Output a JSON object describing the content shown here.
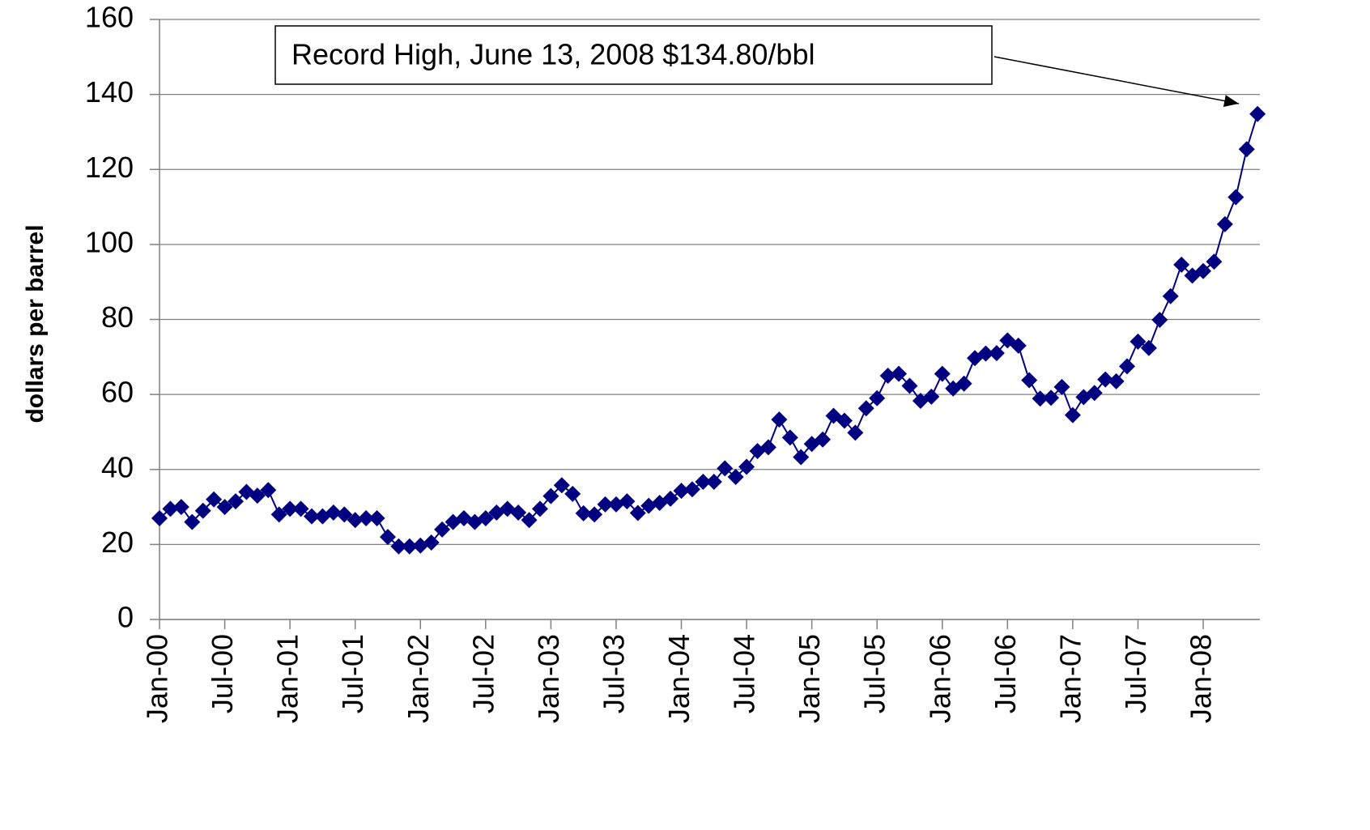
{
  "chart_data": {
    "type": "line",
    "y_axis_label": "dollars per barrel",
    "annotation": "Record High, June 13, 2008 $134.80/bbl",
    "categories": [
      "Jan-00",
      null,
      null,
      null,
      null,
      null,
      "Jul-00",
      null,
      null,
      null,
      null,
      null,
      "Jan-01",
      null,
      null,
      null,
      null,
      null,
      "Jul-01",
      null,
      null,
      null,
      null,
      null,
      "Jan-02",
      null,
      null,
      null,
      null,
      null,
      "Jul-02",
      null,
      null,
      null,
      null,
      null,
      "Jan-03",
      null,
      null,
      null,
      null,
      null,
      "Jul-03",
      null,
      null,
      null,
      null,
      null,
      "Jan-04",
      null,
      null,
      null,
      null,
      null,
      "Jul-04",
      null,
      null,
      null,
      null,
      null,
      "Jan-05",
      null,
      null,
      null,
      null,
      null,
      "Jul-05",
      null,
      null,
      null,
      null,
      null,
      "Jan-06",
      null,
      null,
      null,
      null,
      null,
      "Jul-06",
      null,
      null,
      null,
      null,
      null,
      "Jan-07",
      null,
      null,
      null,
      null,
      null,
      "Jul-07",
      null,
      null,
      null,
      null,
      null,
      "Jan-08",
      null,
      null,
      null,
      null,
      null
    ],
    "values": [
      27,
      29.5,
      30,
      26,
      29,
      32,
      30,
      31.5,
      34,
      33,
      34.5,
      28,
      29.5,
      29.5,
      27.5,
      27.5,
      28.5,
      28,
      26.5,
      27,
      27,
      22,
      19.5,
      19.5,
      19.7,
      20.5,
      24,
      26,
      27,
      26,
      27,
      28.5,
      29.5,
      28.5,
      26.5,
      29.5,
      32.9,
      35.8,
      33.5,
      28.3,
      28,
      30.7,
      30.7,
      31.5,
      28.4,
      30.3,
      31.1,
      32.2,
      34.3,
      34.7,
      36.7,
      36.7,
      40.3,
      38,
      40.7,
      44.9,
      45.9,
      53.3,
      48.5,
      43.3,
      46.8,
      48,
      54.3,
      53,
      49.8,
      56.3,
      59,
      65,
      65.5,
      62.3,
      58.3,
      59.4,
      65.5,
      61.6,
      62.9,
      69.7,
      70.9,
      71,
      74.4,
      73,
      63.8,
      58.9,
      59.1,
      62,
      54.5,
      59.3,
      60.4,
      64,
      63.5,
      67.5,
      74.1,
      72.4,
      79.9,
      86.2,
      94.6,
      91.7,
      92.9,
      95.4,
      105.4,
      112.6,
      125.4,
      134.8
    ],
    "color": "#000080",
    "ylim": [
      0,
      160
    ],
    "yticks": [
      0,
      20,
      40,
      60,
      80,
      100,
      120,
      140,
      160
    ],
    "grid": true
  }
}
